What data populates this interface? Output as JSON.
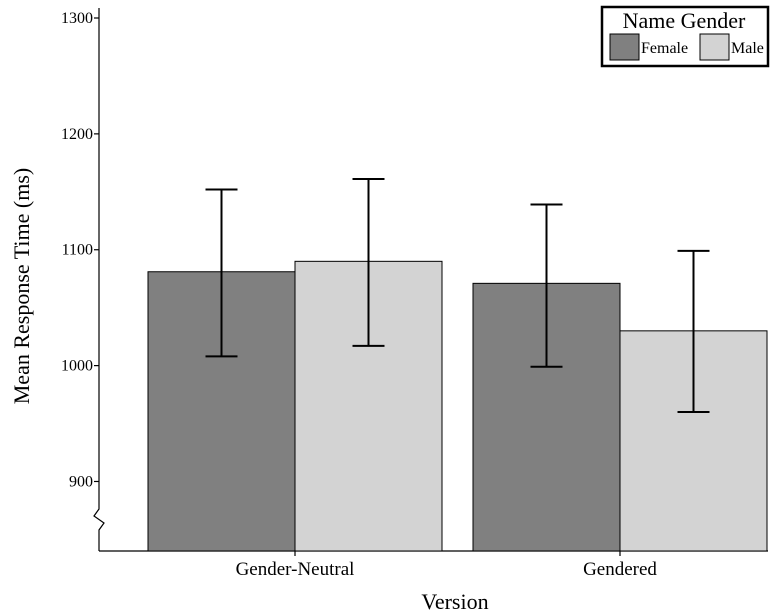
{
  "chart_data": {
    "type": "bar",
    "title": "",
    "xlabel": "Version",
    "ylabel": "Mean Response Time (ms)",
    "categories": [
      "Gender-Neutral",
      "Gendered"
    ],
    "ylim": [
      840,
      1300
    ],
    "yticks": [
      900,
      1000,
      1100,
      1200,
      1300
    ],
    "axis_break": true,
    "grid": false,
    "legend": {
      "title": "Name Gender",
      "position": "top-right"
    },
    "series": [
      {
        "name": "Female",
        "color": "#808080",
        "values": [
          1081,
          1071
        ],
        "error_low": [
          1008,
          999
        ],
        "error_high": [
          1152,
          1139
        ]
      },
      {
        "name": "Male",
        "color": "#d3d3d3",
        "values": [
          1090,
          1030
        ],
        "error_low": [
          1017,
          960
        ],
        "error_high": [
          1161,
          1099
        ]
      }
    ]
  }
}
